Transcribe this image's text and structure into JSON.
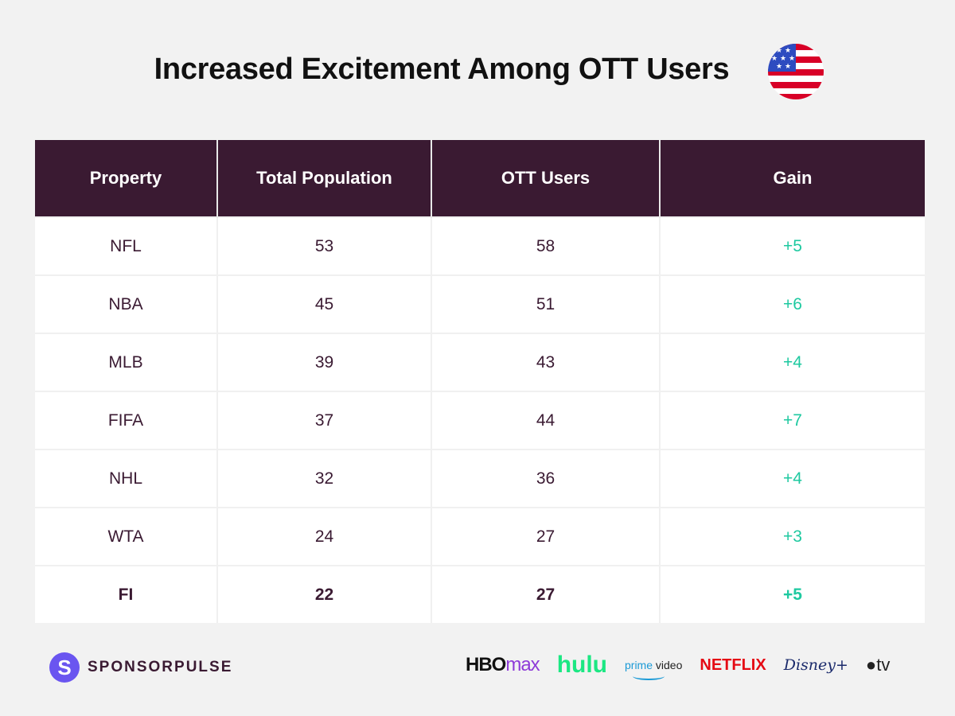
{
  "title": "Increased Excitement Among OTT Users",
  "flag_icon": "us-flag-icon",
  "colors": {
    "header_bg": "#3a1a32",
    "gain": "#1ec9a0",
    "text": "#3a1a32",
    "logo": "#6a55f0"
  },
  "chart_data": {
    "type": "table",
    "title": "Increased Excitement Among OTT Users",
    "columns": [
      "Property",
      "Total Population",
      "OTT Users",
      "Gain"
    ],
    "rows": [
      [
        "NFL",
        "53",
        "58",
        "+5"
      ],
      [
        "NBA",
        "45",
        "51",
        "+6"
      ],
      [
        "MLB",
        "39",
        "43",
        "+4"
      ],
      [
        "FIFA",
        "37",
        "44",
        "+7"
      ],
      [
        "NHL",
        "32",
        "36",
        "+4"
      ],
      [
        "WTA",
        "24",
        "27",
        "+3"
      ],
      [
        "FI",
        "22",
        "27",
        "+5"
      ]
    ],
    "bold_rows": [
      6
    ]
  },
  "footer": {
    "logo_letter": "S",
    "logo_text": "SPONSORPULSE",
    "brands": {
      "hbo": "HBO",
      "hbo_max": "max",
      "hulu": "hulu",
      "prime": "prime",
      "prime_video": "video",
      "netflix": "NETFLIX",
      "disney": "Disney+",
      "apple": "",
      "appletv": "tv"
    }
  }
}
